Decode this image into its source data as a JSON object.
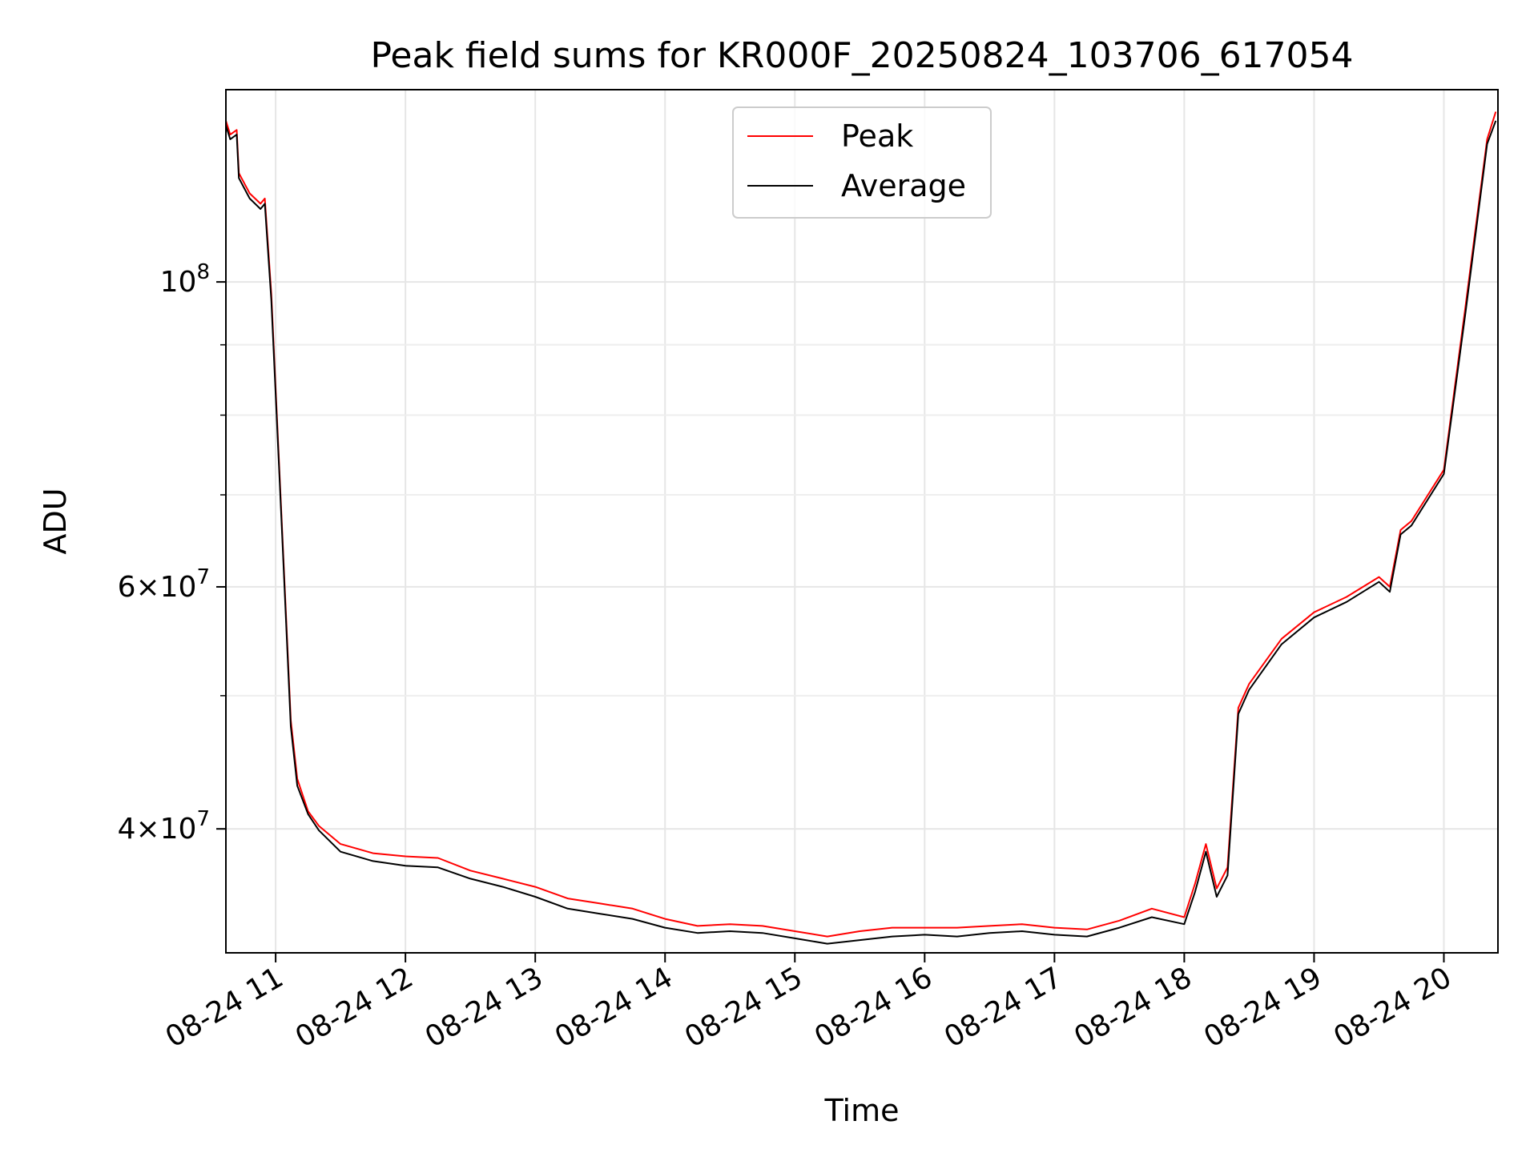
{
  "chart_data": {
    "type": "line",
    "title": "Peak field sums for KR000F_20250824_103706_617054",
    "xlabel": "Time",
    "ylabel": "ADU",
    "y_scale": "log",
    "xlim": [
      "08-24 10:37",
      "08-24 20:25"
    ],
    "ylim": [
      32500000.0,
      138000000.0
    ],
    "x_ticks": [
      "08-24 11",
      "08-24 12",
      "08-24 13",
      "08-24 14",
      "08-24 15",
      "08-24 16",
      "08-24 17",
      "08-24 18",
      "08-24 19",
      "08-24 20"
    ],
    "y_ticks": [
      {
        "base": "4",
        "mult": "×",
        "ten": "10",
        "exp": "7",
        "value": 40000000
      },
      {
        "base": "6",
        "mult": "×",
        "ten": "10",
        "exp": "7",
        "value": 60000000
      },
      {
        "base": "",
        "mult": "",
        "ten": "10",
        "exp": "8",
        "value": 100000000
      }
    ],
    "y_minor_ticks": [
      50000000,
      70000000,
      80000000,
      90000000
    ],
    "grid": true,
    "legend_position": "upper center",
    "series": [
      {
        "name": "Peak",
        "color": "#ff0000",
        "x": [
          "08-24 10:37",
          "08-24 10:39",
          "08-24 10:42",
          "08-24 10:43",
          "08-24 10:48",
          "08-24 10:53",
          "08-24 10:55",
          "08-24 10:58",
          "08-24 11:03",
          "08-24 11:07",
          "08-24 11:10",
          "08-24 11:15",
          "08-24 11:20",
          "08-24 11:30",
          "08-24 11:45",
          "08-24 12:00",
          "08-24 12:15",
          "08-24 12:30",
          "08-24 12:45",
          "08-24 13:00",
          "08-24 13:15",
          "08-24 13:30",
          "08-24 13:45",
          "08-24 14:00",
          "08-24 14:15",
          "08-24 14:30",
          "08-24 14:45",
          "08-24 15:00",
          "08-24 15:15",
          "08-24 15:30",
          "08-24 15:45",
          "08-24 16:00",
          "08-24 16:15",
          "08-24 16:30",
          "08-24 16:45",
          "08-24 17:00",
          "08-24 17:15",
          "08-24 17:30",
          "08-24 17:45",
          "08-24 18:00",
          "08-24 18:05",
          "08-24 18:10",
          "08-24 18:15",
          "08-24 18:20",
          "08-24 18:25",
          "08-24 18:30",
          "08-24 18:45",
          "08-24 19:00",
          "08-24 19:15",
          "08-24 19:30",
          "08-24 19:35",
          "08-24 19:40",
          "08-24 19:45",
          "08-24 20:00",
          "08-24 20:10",
          "08-24 20:20",
          "08-24 20:24"
        ],
        "y": [
          131000000,
          128000000,
          129000000,
          120000000,
          116000000,
          114000000,
          115000000,
          98000000,
          66000000,
          48000000,
          43500000,
          41200000,
          40200000,
          39000000,
          38400000,
          38200000,
          38100000,
          37300000,
          36800000,
          36300000,
          35600000,
          35300000,
          35000000,
          34400000,
          34000000,
          34100000,
          34000000,
          33700000,
          33400000,
          33700000,
          33900000,
          33900000,
          33900000,
          34000000,
          34100000,
          33900000,
          33800000,
          34300000,
          35000000,
          34500000,
          36500000,
          39000000,
          36200000,
          37500000,
          49000000,
          51000000,
          55000000,
          57500000,
          59000000,
          61000000,
          60000000,
          66000000,
          67000000,
          73000000,
          96000000,
          127000000,
          133000000
        ]
      },
      {
        "name": "Average",
        "color": "#000000",
        "x": [
          "08-24 10:37",
          "08-24 10:39",
          "08-24 10:42",
          "08-24 10:43",
          "08-24 10:48",
          "08-24 10:53",
          "08-24 10:55",
          "08-24 10:58",
          "08-24 11:03",
          "08-24 11:07",
          "08-24 11:10",
          "08-24 11:15",
          "08-24 11:20",
          "08-24 11:30",
          "08-24 11:45",
          "08-24 12:00",
          "08-24 12:15",
          "08-24 12:30",
          "08-24 12:45",
          "08-24 13:00",
          "08-24 13:15",
          "08-24 13:30",
          "08-24 13:45",
          "08-24 14:00",
          "08-24 14:15",
          "08-24 14:30",
          "08-24 14:45",
          "08-24 15:00",
          "08-24 15:15",
          "08-24 15:30",
          "08-24 15:45",
          "08-24 16:00",
          "08-24 16:15",
          "08-24 16:30",
          "08-24 16:45",
          "08-24 17:00",
          "08-24 17:15",
          "08-24 17:30",
          "08-24 17:45",
          "08-24 18:00",
          "08-24 18:05",
          "08-24 18:10",
          "08-24 18:15",
          "08-24 18:20",
          "08-24 18:25",
          "08-24 18:30",
          "08-24 18:45",
          "08-24 19:00",
          "08-24 19:15",
          "08-24 19:30",
          "08-24 19:35",
          "08-24 19:40",
          "08-24 19:45",
          "08-24 20:00",
          "08-24 20:10",
          "08-24 20:20",
          "08-24 20:24"
        ],
        "y": [
          130000000,
          127000000,
          128000000,
          119000000,
          115000000,
          113000000,
          114000000,
          97000000,
          65500000,
          47500000,
          43000000,
          41000000,
          39900000,
          38500000,
          37900000,
          37600000,
          37500000,
          36800000,
          36300000,
          35700000,
          35000000,
          34700000,
          34400000,
          33900000,
          33600000,
          33700000,
          33600000,
          33300000,
          33000000,
          33200000,
          33400000,
          33500000,
          33400000,
          33600000,
          33700000,
          33500000,
          33400000,
          33900000,
          34500000,
          34100000,
          36000000,
          38500000,
          35700000,
          37000000,
          48500000,
          50500000,
          54500000,
          57000000,
          58500000,
          60500000,
          59500000,
          65500000,
          66500000,
          72500000,
          95000000,
          126000000,
          131000000
        ]
      }
    ]
  }
}
